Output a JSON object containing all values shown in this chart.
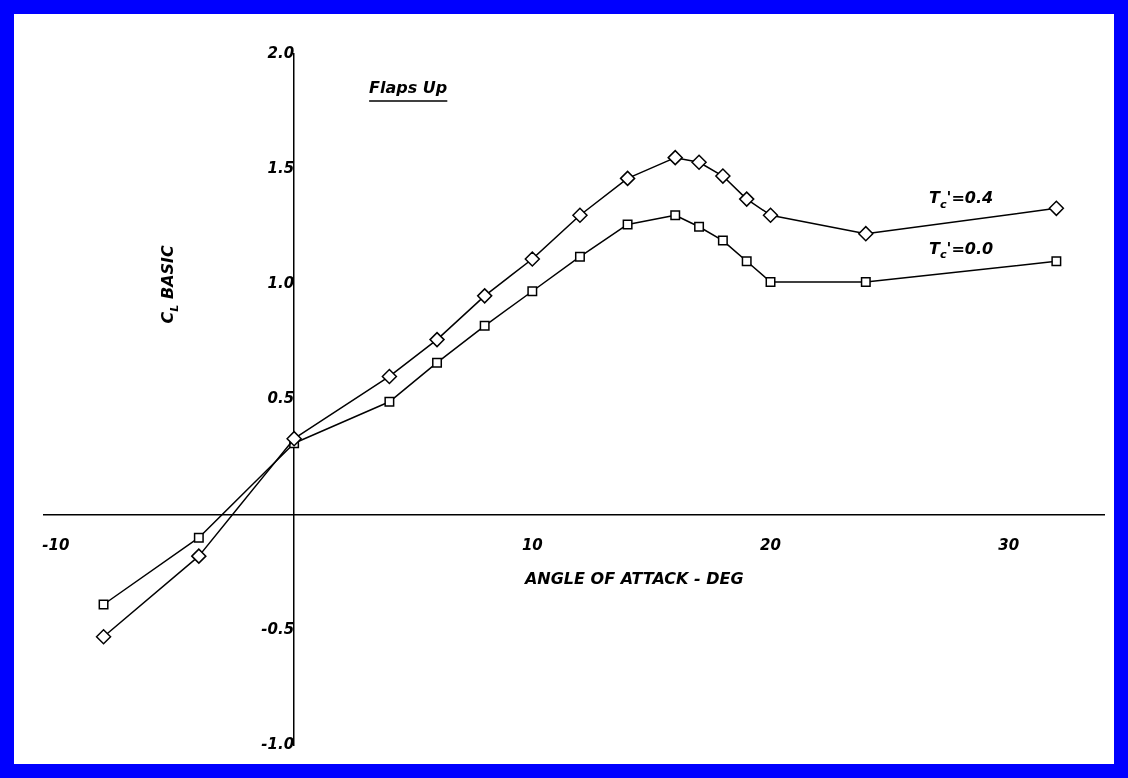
{
  "chart_data": {
    "type": "line",
    "title": "Flaps Up",
    "xlabel": "ANGLE OF ATTACK - DEG",
    "ylabel": "C$_{L}$ BASIC",
    "x": [
      -8,
      -4,
      0,
      4,
      6,
      8,
      10,
      12,
      14,
      16,
      17,
      18,
      19,
      20,
      24,
      32
    ],
    "series": [
      {
        "name": "T$_{c}$'=0.4",
        "color": "#000000",
        "marker": "diamond",
        "values": [
          -0.53,
          -0.18,
          0.33,
          0.6,
          0.76,
          0.95,
          1.11,
          1.3,
          1.46,
          1.55,
          1.53,
          1.47,
          1.37,
          1.3,
          1.22,
          1.33
        ]
      },
      {
        "name": "T$_{c}$'=0.0",
        "color": "#000000",
        "marker": "square",
        "values": [
          -0.39,
          -0.1,
          0.31,
          0.49,
          0.66,
          0.82,
          0.97,
          1.12,
          1.26,
          1.3,
          1.25,
          1.19,
          1.1,
          1.01,
          1.01,
          1.1
        ]
      }
    ],
    "xlim": [
      -10.5,
      34
    ],
    "xticks": [
      -10,
      10,
      20,
      30
    ],
    "ylim": [
      -1.0,
      2.0
    ],
    "yticks": [
      {
        "value": -1,
        "label": "-1.0"
      },
      -0.5,
      0.5,
      {
        "value": 1,
        "label": "1.0"
      },
      1.5,
      {
        "value": 2,
        "label": "2.0"
      }
    ],
    "grid": false,
    "legend": false,
    "line_style": "solid"
  }
}
